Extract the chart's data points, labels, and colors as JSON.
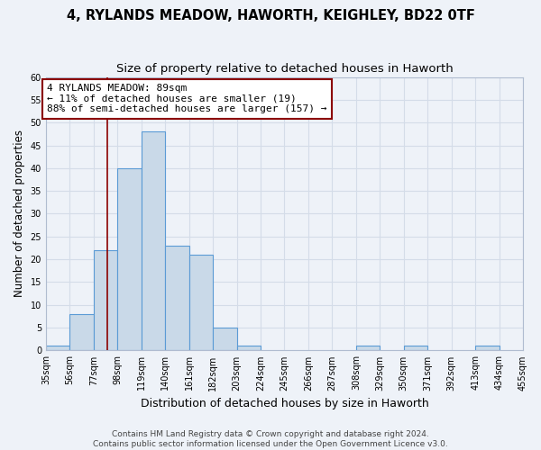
{
  "title_line1": "4, RYLANDS MEADOW, HAWORTH, KEIGHLEY, BD22 0TF",
  "title_line2": "Size of property relative to detached houses in Haworth",
  "xlabel": "Distribution of detached houses by size in Haworth",
  "ylabel": "Number of detached properties",
  "bin_edges": [
    35,
    56,
    77,
    98,
    119,
    140,
    161,
    182,
    203,
    224,
    245,
    266,
    287,
    308,
    329,
    350,
    371,
    392,
    413,
    434,
    455
  ],
  "bar_heights": [
    1,
    8,
    22,
    40,
    48,
    23,
    21,
    5,
    1,
    0,
    0,
    0,
    0,
    1,
    0,
    1,
    0,
    0,
    1,
    0
  ],
  "bar_color": "#c9d9e8",
  "bar_edge_color": "#5b9bd5",
  "property_size": 89,
  "vline_color": "#8b0000",
  "annotation_text": "4 RYLANDS MEADOW: 89sqm\n← 11% of detached houses are smaller (19)\n88% of semi-detached houses are larger (157) →",
  "annotation_box_color": "#ffffff",
  "annotation_box_edge_color": "#8b0000",
  "ylim": [
    0,
    60
  ],
  "yticks": [
    0,
    5,
    10,
    15,
    20,
    25,
    30,
    35,
    40,
    45,
    50,
    55,
    60
  ],
  "grid_color": "#d4dce8",
  "background_color": "#eef2f8",
  "footer_text": "Contains HM Land Registry data © Crown copyright and database right 2024.\nContains public sector information licensed under the Open Government Licence v3.0.",
  "title_fontsize": 10.5,
  "subtitle_fontsize": 9.5,
  "tick_label_fontsize": 7,
  "ylabel_fontsize": 8.5,
  "xlabel_fontsize": 9,
  "annotation_fontsize": 8,
  "footer_fontsize": 6.5
}
